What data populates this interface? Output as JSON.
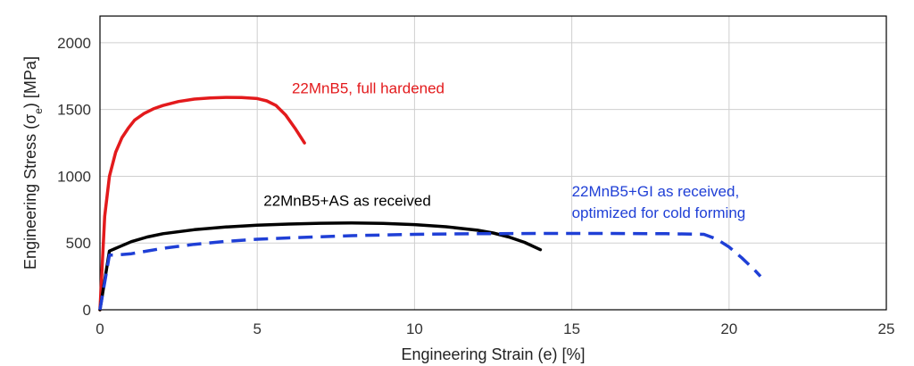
{
  "chart_data": {
    "type": "line",
    "xlabel": "Engineering Strain (e) [%]",
    "ylabel_parts": {
      "pre": "Engineering Stress (σ",
      "sub": "e",
      "post": ") [MPa]"
    },
    "xlim": [
      0,
      25
    ],
    "ylim": [
      0,
      2200
    ],
    "xticks": [
      0,
      5,
      10,
      15,
      20,
      25
    ],
    "yticks": [
      0,
      500,
      1000,
      1500,
      2000
    ],
    "grid": true,
    "legend": "none",
    "series": [
      {
        "name": "22MnB5, full hardened",
        "color": "#e31a1c",
        "style": "solid",
        "x": [
          0,
          0.15,
          0.3,
          0.5,
          0.7,
          0.9,
          1.1,
          1.4,
          1.7,
          2.0,
          2.5,
          3.0,
          3.5,
          4.0,
          4.5,
          5.0,
          5.3,
          5.6,
          5.9,
          6.2,
          6.5
        ],
        "y": [
          0,
          700,
          1000,
          1180,
          1290,
          1360,
          1420,
          1470,
          1505,
          1530,
          1560,
          1578,
          1587,
          1591,
          1590,
          1582,
          1565,
          1530,
          1460,
          1360,
          1250
        ]
      },
      {
        "name": "22MnB5+AS as received",
        "color": "#000000",
        "style": "solid",
        "x": [
          0,
          0.3,
          0.6,
          1.0,
          1.5,
          2.0,
          3.0,
          4.0,
          5.0,
          6.0,
          7.0,
          8.0,
          9.0,
          10.0,
          11.0,
          12.0,
          12.5,
          13.0,
          13.5,
          14.0
        ],
        "y": [
          0,
          440,
          470,
          510,
          545,
          570,
          600,
          620,
          633,
          642,
          648,
          650,
          647,
          638,
          622,
          596,
          575,
          545,
          505,
          450
        ]
      },
      {
        "name": "22MnB5+GI as received, optimized for cold forming",
        "color": "#1f3fd6",
        "style": "dashed",
        "x": [
          0,
          0.3,
          0.5,
          1.0,
          2.0,
          3.0,
          4.0,
          5.0,
          6.0,
          8.0,
          10.0,
          12.0,
          14.0,
          16.0,
          18.0,
          19.2,
          19.6,
          20.0,
          20.4,
          20.8,
          21.0
        ],
        "y": [
          0,
          410,
          410,
          420,
          460,
          490,
          512,
          528,
          538,
          555,
          565,
          570,
          572,
          572,
          570,
          565,
          530,
          470,
          390,
          300,
          250
        ]
      }
    ],
    "annotations": [
      {
        "text": "22MnB5, full hardened",
        "x": 6.1,
        "y": 1620,
        "color": "#e31a1c"
      },
      {
        "text": "22MnB5+AS as received",
        "x": 5.2,
        "y": 780,
        "color": "#000000"
      },
      {
        "text": "22MnB5+GI as received,",
        "x": 15.0,
        "y": 850,
        "color": "#1f3fd6"
      },
      {
        "text": "optimized for cold forming",
        "x": 15.0,
        "y": 690,
        "color": "#1f3fd6"
      }
    ]
  }
}
